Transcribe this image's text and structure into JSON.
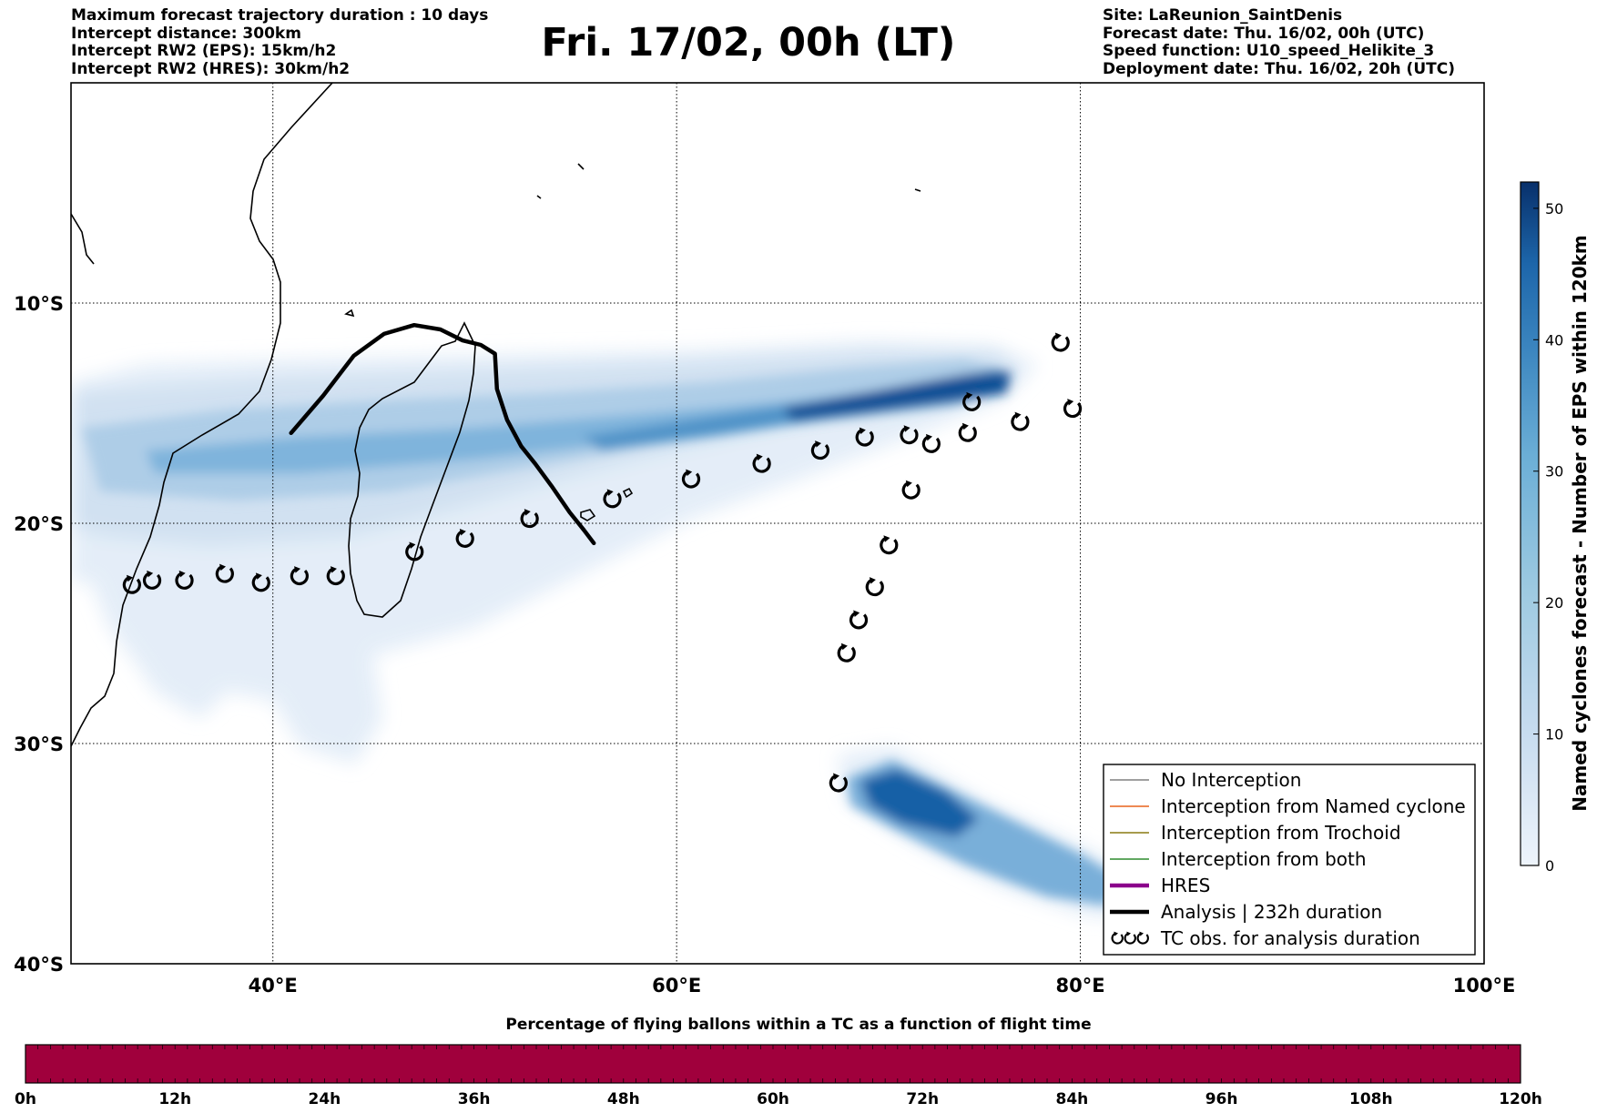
{
  "header_left": [
    "Maximum forecast trajectory duration : 10 days",
    "Intercept distance: 300km",
    "Intercept RW2 (EPS):  15km/h2",
    "Intercept RW2 (HRES): 30km/h2"
  ],
  "header_right": [
    "Site: LaReunion_SaintDenis",
    "Forecast date: Thu. 16/02, 00h (UTC)",
    "Speed function: U10_speed_Helikite_3",
    "Deployment date: Thu. 16/02, 20h (UTC)"
  ],
  "title": "Fri. 17/02, 00h (LT)",
  "map": {
    "lon_range": [
      30,
      100
    ],
    "lat_range": [
      -40,
      0
    ],
    "lon_ticks": [
      {
        "lon": 40,
        "label": "40°E"
      },
      {
        "lon": 60,
        "label": "60°E"
      },
      {
        "lon": 80,
        "label": "80°E"
      },
      {
        "lon": 100,
        "label": "100°E"
      }
    ],
    "lat_ticks": [
      {
        "lat": -10,
        "label": "10°S"
      },
      {
        "lat": -20,
        "label": "20°S"
      },
      {
        "lat": -30,
        "label": "30°S"
      },
      {
        "lat": -40,
        "label": "40°S"
      }
    ],
    "gridlines": "dotted",
    "analysis_track": [
      [
        40.9,
        -15.9
      ],
      [
        42.5,
        -14.2
      ],
      [
        44.0,
        -12.4
      ],
      [
        45.5,
        -11.4
      ],
      [
        47.0,
        -11.0
      ],
      [
        48.3,
        -11.2
      ],
      [
        49.4,
        -11.7
      ],
      [
        50.3,
        -11.9
      ],
      [
        51.0,
        -12.3
      ],
      [
        51.1,
        -13.9
      ],
      [
        51.6,
        -15.3
      ],
      [
        52.3,
        -16.5
      ],
      [
        53.0,
        -17.3
      ],
      [
        53.8,
        -18.3
      ],
      [
        54.7,
        -19.5
      ],
      [
        55.4,
        -20.3
      ],
      [
        55.9,
        -20.9
      ]
    ],
    "tc_obs": [
      [
        33.0,
        -22.8
      ],
      [
        34.0,
        -22.6
      ],
      [
        35.6,
        -22.6
      ],
      [
        37.6,
        -22.3
      ],
      [
        39.4,
        -22.7
      ],
      [
        41.3,
        -22.4
      ],
      [
        43.1,
        -22.4
      ],
      [
        47.0,
        -21.3
      ],
      [
        49.5,
        -20.7
      ],
      [
        52.7,
        -19.8
      ],
      [
        56.8,
        -18.9
      ],
      [
        60.7,
        -18.0
      ],
      [
        64.2,
        -17.3
      ],
      [
        67.1,
        -16.7
      ],
      [
        69.3,
        -16.1
      ],
      [
        71.5,
        -16.0
      ],
      [
        72.6,
        -16.4
      ],
      [
        74.4,
        -15.9
      ],
      [
        74.6,
        -14.5
      ],
      [
        77.0,
        -15.4
      ],
      [
        79.0,
        -11.8
      ],
      [
        79.6,
        -14.8
      ],
      [
        71.6,
        -18.5
      ],
      [
        70.5,
        -21.0
      ],
      [
        69.8,
        -22.9
      ],
      [
        69.0,
        -24.4
      ],
      [
        68.4,
        -25.9
      ],
      [
        68.0,
        -31.8
      ]
    ],
    "density_note_levels": [
      5,
      15,
      25,
      35,
      45,
      50
    ]
  },
  "legend": {
    "items": [
      {
        "label": "No Interception",
        "color": "#808080",
        "kind": "line-thin"
      },
      {
        "label": "Interception from Named cyclone",
        "color": "#e8621b",
        "kind": "line-thin"
      },
      {
        "label": "Interception from Trochoid",
        "color": "#8a7a12",
        "kind": "line-thin"
      },
      {
        "label": "Interception from both",
        "color": "#2e8b2e",
        "kind": "line-thin"
      },
      {
        "label": "HRES",
        "color": "#8b008b",
        "kind": "line-thick"
      },
      {
        "label": "Analysis | 232h duration",
        "color": "#000000",
        "kind": "line-thick"
      },
      {
        "label": "TC obs. for analysis duration",
        "color": "#000000",
        "kind": "tc-symbols"
      }
    ]
  },
  "colorbar": {
    "label": "Named cyclones forecast - Number of EPS within 120km",
    "min": 0,
    "max": 52,
    "ticks": [
      0,
      10,
      20,
      30,
      40,
      50
    ],
    "colors": [
      "#e8f1fa",
      "#c6dbef",
      "#9ecae1",
      "#6baed6",
      "#4292c6",
      "#2171b5",
      "#08519c",
      "#08306b"
    ]
  },
  "time_bar": {
    "title": "Percentage of flying ballons within a TC as a function of flight time",
    "color": "#a0003c",
    "ticks": [
      "0h",
      "12h",
      "24h",
      "36h",
      "48h",
      "60h",
      "72h",
      "84h",
      "96h",
      "108h",
      "120h"
    ]
  }
}
